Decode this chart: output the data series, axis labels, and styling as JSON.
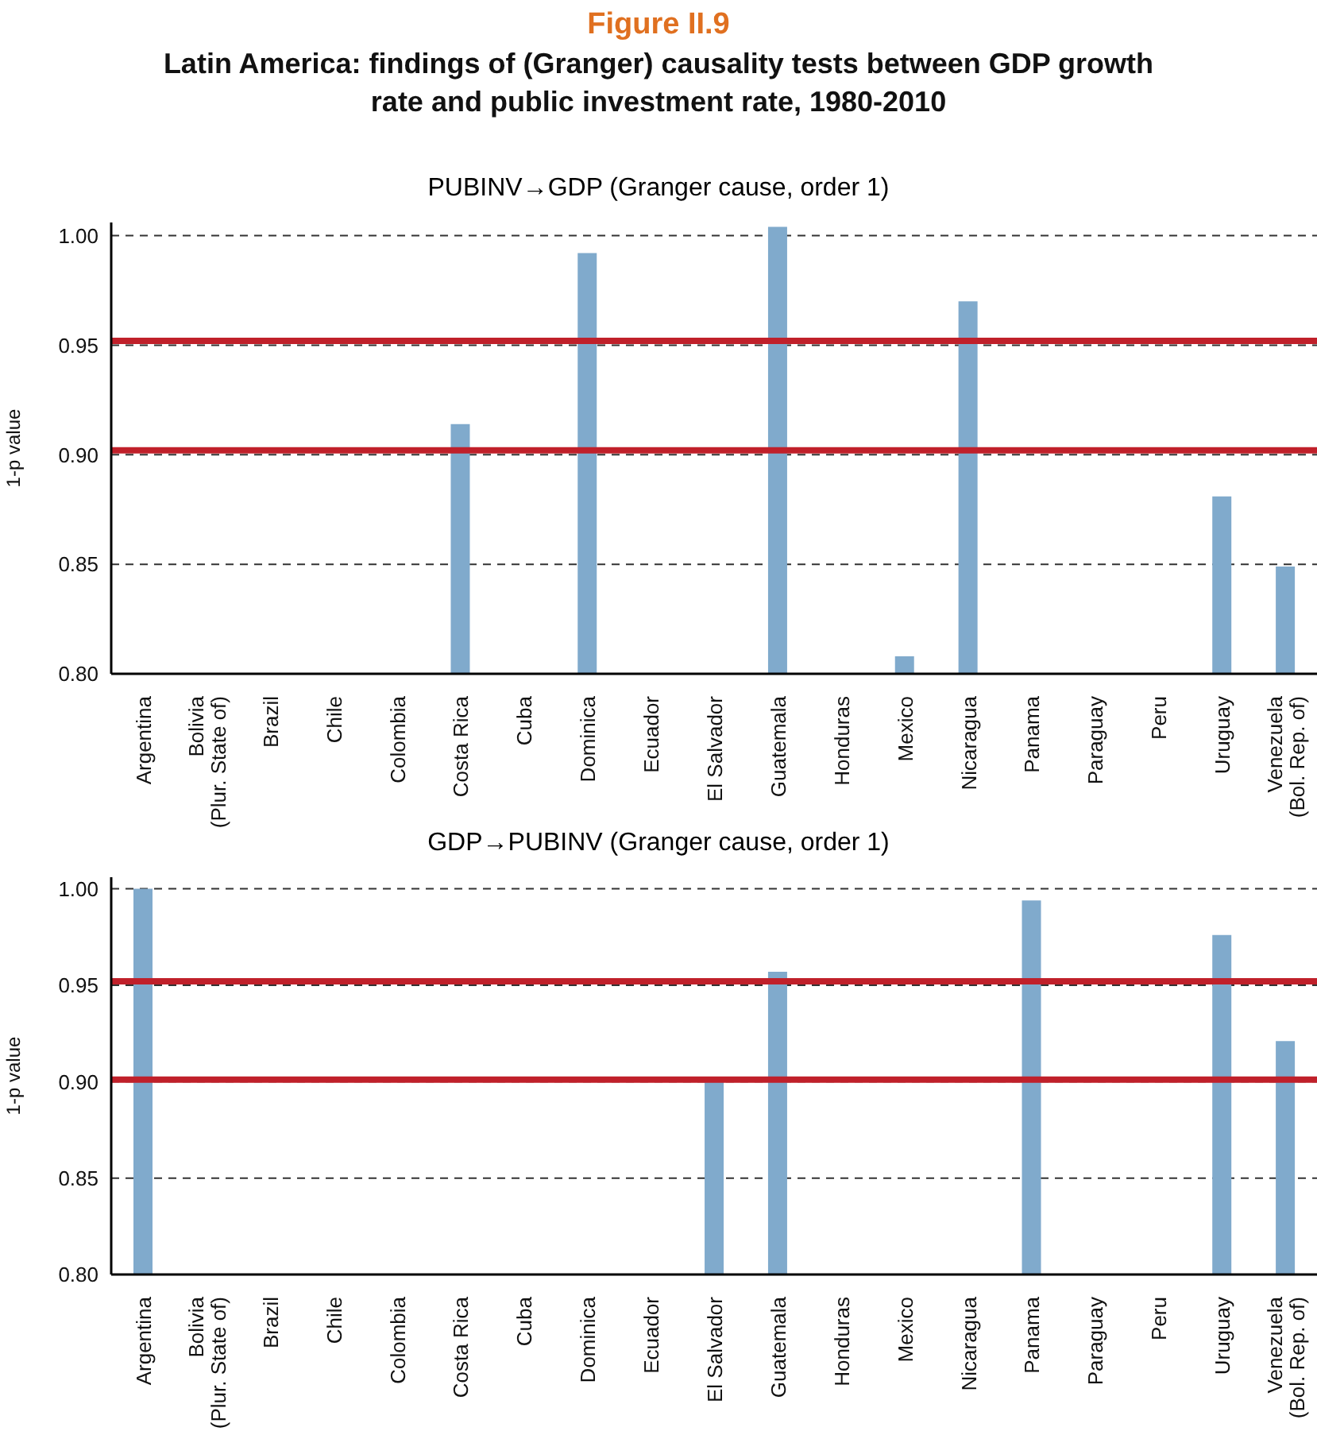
{
  "chart_data": [
    {
      "type": "bar",
      "title": "PUBINV→GDP (Granger cause, order 1)",
      "annotations": [
        "Figure II.9",
        "Latin America: findings of (Granger) causality tests between GDP growth rate and public investment rate, 1980-2010"
      ],
      "ylabel": "1-p value",
      "categories": [
        "Argentina",
        "Bolivia (Plur. State of)",
        "Brazil",
        "Chile",
        "Colombia",
        "Costa Rica",
        "Cuba",
        "Dominica",
        "Ecuador",
        "El Salvador",
        "Guatemala",
        "Honduras",
        "Mexico",
        "Nicaragua",
        "Panama",
        "Paraguay",
        "Peru",
        "Uruguay",
        "Venezuela (Bol. Rep. of)"
      ],
      "values": [
        null,
        null,
        null,
        null,
        null,
        0.914,
        null,
        0.992,
        null,
        null,
        1.004,
        null,
        0.808,
        0.97,
        null,
        null,
        null,
        0.881,
        0.849
      ],
      "color": "#80aacc",
      "ylim": [
        0.8,
        1.006
      ],
      "yticks": [
        {
          "value": 0.8,
          "label": "0.80"
        },
        {
          "value": 0.85,
          "label": "0.85"
        },
        {
          "value": 0.9,
          "label": "0.90"
        },
        {
          "value": 0.95,
          "label": "0.95"
        },
        {
          "value": 1.0,
          "label": "1.00"
        }
      ],
      "grid": "y",
      "ref_lines": [
        {
          "axis": "y",
          "value": 0.952,
          "color": "#c0202a"
        },
        {
          "axis": "y",
          "value": 0.902,
          "color": "#c0202a"
        }
      ]
    },
    {
      "type": "bar",
      "title": "GDP→PUBINV (Granger cause, order 1)",
      "ylabel": "1-p value",
      "categories": [
        "Argentina",
        "Bolivia (Plur. State of)",
        "Brazil",
        "Chile",
        "Colombia",
        "Costa Rica",
        "Cuba",
        "Dominica",
        "Ecuador",
        "El Salvador",
        "Guatemala",
        "Honduras",
        "Mexico",
        "Nicaragua",
        "Panama",
        "Paraguay",
        "Peru",
        "Uruguay",
        "Venezuela (Bol. Rep. of)"
      ],
      "values": [
        1.0,
        null,
        null,
        null,
        null,
        null,
        null,
        null,
        null,
        0.901,
        0.957,
        null,
        null,
        null,
        0.994,
        null,
        null,
        0.976,
        0.921
      ],
      "color": "#80aacc",
      "ylim": [
        0.8,
        1.006
      ],
      "yticks": [
        {
          "value": 0.8,
          "label": "0.80"
        },
        {
          "value": 0.85,
          "label": "0.85"
        },
        {
          "value": 0.9,
          "label": "0.90"
        },
        {
          "value": 0.95,
          "label": "0.95"
        },
        {
          "value": 1.0,
          "label": "1.00"
        }
      ],
      "grid": "y",
      "ref_lines": [
        {
          "axis": "y",
          "value": 0.952,
          "color": "#c0202a"
        },
        {
          "axis": "y",
          "value": 0.901,
          "color": "#c0202a"
        }
      ]
    }
  ]
}
